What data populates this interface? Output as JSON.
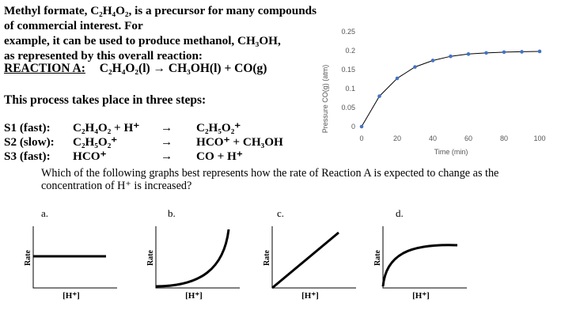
{
  "intro": {
    "line1": "Methyl formate, C₂H₄O₂, is a precursor for many compounds of commercial interest. For",
    "line2": "example, it can be used to produce methanol, CH₃OH,",
    "line3": "as represented by this overall reaction:"
  },
  "reaction_a": {
    "label": "REACTION A:",
    "equation": "C₂H₄O₂(l) → CH₃OH(l) + CO(g)"
  },
  "steps_intro": "This process takes place in three steps:",
  "steps": [
    {
      "label": "S1 (fast):",
      "reactants": "C₂H₄O₂ + H⁺",
      "arrow": "→",
      "products": "C₂H₅O₂⁺"
    },
    {
      "label": "S2 (slow):",
      "reactants": "C₂H₅O₂⁺",
      "arrow": "→",
      "products": "HCO⁺ +  CH₃OH"
    },
    {
      "label": "S3 (fast):",
      "reactants": "HCO⁺",
      "arrow": "→",
      "products": "CO  +  H⁺"
    }
  ],
  "question": "Which of the following graphs best represents how the rate of Reaction A is expected to change as the concentration of H⁺ is increased?",
  "options": [
    {
      "letter": "a.",
      "ylabel": "Rate",
      "xlabel": "[H⁺]",
      "shape": "flat"
    },
    {
      "letter": "b.",
      "ylabel": "Rate",
      "xlabel": "[H⁺]",
      "shape": "concave-up"
    },
    {
      "letter": "c.",
      "ylabel": "Rate",
      "xlabel": "[H⁺]",
      "shape": "linear"
    },
    {
      "letter": "d.",
      "ylabel": "Rate",
      "xlabel": "[H⁺]",
      "shape": "saturating"
    }
  ],
  "chart_data": {
    "type": "scatter",
    "title": "",
    "xlabel": "Time (min)",
    "ylabel": "Pressure CO(g) (atm)",
    "xlim": [
      0,
      100
    ],
    "ylim": [
      0,
      0.25
    ],
    "xticks": [
      0,
      20,
      40,
      60,
      80,
      100
    ],
    "yticks": [
      0,
      0.05,
      0.1,
      0.15,
      0.2,
      0.25
    ],
    "grid": false,
    "series": [
      {
        "x": [
          0,
          10,
          20,
          30,
          40,
          50,
          60,
          70,
          80,
          90,
          100
        ],
        "y": [
          0,
          0.08,
          0.127,
          0.157,
          0.174,
          0.185,
          0.191,
          0.194,
          0.196,
          0.197,
          0.198
        ]
      }
    ],
    "colors": {
      "points": "#4472c4",
      "line": "#000000"
    }
  }
}
